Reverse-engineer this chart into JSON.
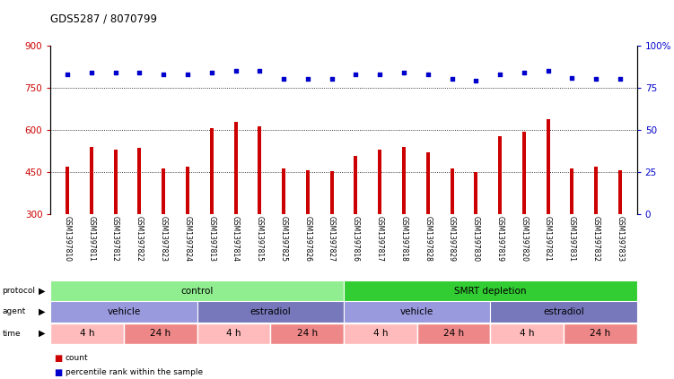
{
  "title": "GDS5287 / 8070799",
  "samples": [
    "GSM1397810",
    "GSM1397811",
    "GSM1397812",
    "GSM1397822",
    "GSM1397823",
    "GSM1397824",
    "GSM1397813",
    "GSM1397814",
    "GSM1397815",
    "GSM1397825",
    "GSM1397826",
    "GSM1397827",
    "GSM1397816",
    "GSM1397817",
    "GSM1397818",
    "GSM1397828",
    "GSM1397829",
    "GSM1397830",
    "GSM1397819",
    "GSM1397820",
    "GSM1397821",
    "GSM1397831",
    "GSM1397832",
    "GSM1397833"
  ],
  "bar_values": [
    470,
    540,
    530,
    535,
    462,
    470,
    607,
    628,
    612,
    462,
    457,
    452,
    508,
    528,
    540,
    520,
    462,
    450,
    578,
    592,
    638,
    462,
    468,
    455
  ],
  "dot_values": [
    83,
    84,
    84,
    84,
    83,
    83,
    84,
    85,
    85,
    80,
    80,
    80,
    83,
    83,
    84,
    83,
    80,
    79,
    83,
    84,
    85,
    81,
    80,
    80
  ],
  "bar_color": "#cc0000",
  "dot_color": "#0000cc",
  "ylim_left": [
    300,
    900
  ],
  "ylim_right": [
    0,
    100
  ],
  "yticks_left": [
    300,
    450,
    600,
    750,
    900
  ],
  "yticks_right": [
    0,
    25,
    50,
    75,
    100
  ],
  "grid_values": [
    450,
    600,
    750
  ],
  "protocol_groups": [
    {
      "label": "control",
      "start": 0,
      "end": 12,
      "color": "#90ee90"
    },
    {
      "label": "SMRT depletion",
      "start": 12,
      "end": 24,
      "color": "#32cd32"
    }
  ],
  "agent_groups": [
    {
      "label": "vehicle",
      "start": 0,
      "end": 6,
      "color": "#9999dd"
    },
    {
      "label": "estradiol",
      "start": 6,
      "end": 12,
      "color": "#7777bb"
    },
    {
      "label": "vehicle",
      "start": 12,
      "end": 18,
      "color": "#9999dd"
    },
    {
      "label": "estradiol",
      "start": 18,
      "end": 24,
      "color": "#7777bb"
    }
  ],
  "time_groups": [
    {
      "label": "4 h",
      "start": 0,
      "end": 3,
      "color": "#ffbbbb"
    },
    {
      "label": "24 h",
      "start": 3,
      "end": 6,
      "color": "#ee8888"
    },
    {
      "label": "4 h",
      "start": 6,
      "end": 9,
      "color": "#ffbbbb"
    },
    {
      "label": "24 h",
      "start": 9,
      "end": 12,
      "color": "#ee8888"
    },
    {
      "label": "4 h",
      "start": 12,
      "end": 15,
      "color": "#ffbbbb"
    },
    {
      "label": "24 h",
      "start": 15,
      "end": 18,
      "color": "#ee8888"
    },
    {
      "label": "4 h",
      "start": 18,
      "end": 21,
      "color": "#ffbbbb"
    },
    {
      "label": "24 h",
      "start": 21,
      "end": 24,
      "color": "#ee8888"
    }
  ],
  "legend_bar_label": "count",
  "legend_dot_label": "percentile rank within the sample",
  "bg_color": "#ffffff",
  "tick_area_bg": "#cccccc"
}
